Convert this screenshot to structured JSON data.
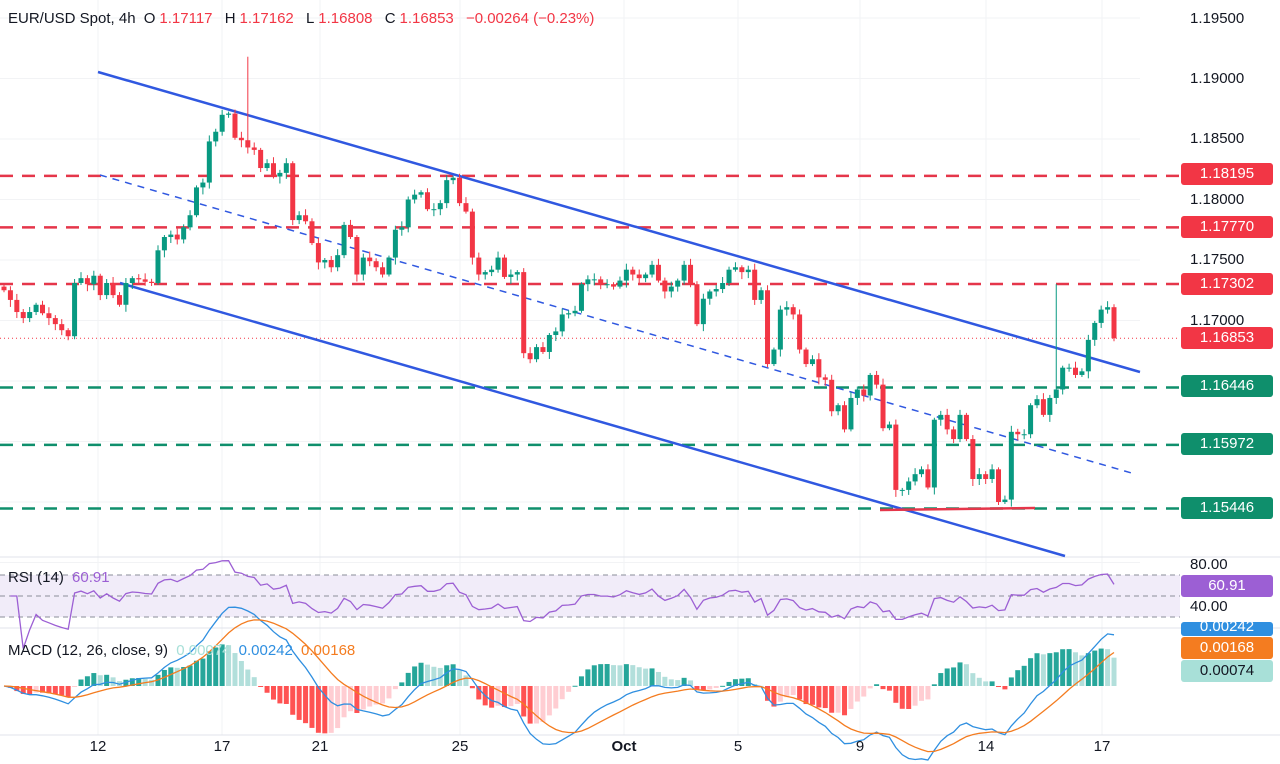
{
  "header": {
    "symbol": "EUR/USD Spot, 4h",
    "open_label": "O",
    "open": "1.17117",
    "high_label": "H",
    "high": "1.17162",
    "low_label": "L",
    "low": "1.16808",
    "close_label": "C",
    "close": "1.16853",
    "change": "−0.00264 (−0.23%)"
  },
  "colors": {
    "up": "#089981",
    "down": "#f23645",
    "trendline": "#3058e0",
    "resistance": "#e5364a",
    "support": "#0f8f6c",
    "rsi": "#9c5fd4",
    "macd": "#2f8fe0",
    "signal": "#f47c20"
  },
  "price_axis": {
    "labels": [
      "1.19500",
      "1.19000",
      "1.18500",
      "1.18000",
      "1.17500",
      "1.17000"
    ]
  },
  "levels": {
    "resistance": [
      {
        "label": "1.18195",
        "value": 1.18195
      },
      {
        "label": "1.17770",
        "value": 1.1777
      },
      {
        "label": "1.17302",
        "value": 1.17302
      }
    ],
    "support": [
      {
        "label": "1.16446",
        "value": 1.16446
      },
      {
        "label": "1.15972",
        "value": 1.15972
      },
      {
        "label": "1.15446",
        "value": 1.15446
      }
    ],
    "current": {
      "label": "1.16853",
      "value": 1.16853
    }
  },
  "time_axis": {
    "labels": [
      "12",
      "17",
      "21",
      "25",
      "Oct",
      "5",
      "9",
      "14",
      "17"
    ]
  },
  "rsi": {
    "title": "RSI (14)",
    "value": "60.91",
    "upper_label": "80.00",
    "lower_label": "40.00"
  },
  "macd": {
    "title": "MACD (12, 26, close, 9)",
    "histogram": "0.00074",
    "macd": "0.00242",
    "signal": "0.00168"
  },
  "chart_data": {
    "type": "candlestick",
    "title": "EUR/USD Spot, 4h",
    "ylim": [
      1.15,
      1.195
    ],
    "close": [
      1.1725,
      1.1717,
      1.1707,
      1.1702,
      1.1707,
      1.1713,
      1.1706,
      1.1702,
      1.1697,
      1.1692,
      1.1687,
      1.1731,
      1.1735,
      1.173,
      1.1737,
      1.1721,
      1.1731,
      1.1721,
      1.1713,
      1.1731,
      1.1735,
      1.1734,
      1.1732,
      1.1731,
      1.1758,
      1.1769,
      1.1771,
      1.1767,
      1.1777,
      1.1787,
      1.181,
      1.1814,
      1.1848,
      1.1856,
      1.187,
      1.1871,
      1.1851,
      1.1849,
      1.1843,
      1.1841,
      1.1826,
      1.183,
      1.1819,
      1.1822,
      1.183,
      1.1783,
      1.1787,
      1.1782,
      1.1764,
      1.1748,
      1.175,
      1.1744,
      1.1754,
      1.1779,
      1.1769,
      1.1738,
      1.1752,
      1.1749,
      1.1744,
      1.1738,
      1.1752,
      1.1775,
      1.1777,
      1.18,
      1.1804,
      1.1806,
      1.1792,
      1.1792,
      1.1797,
      1.1816,
      1.1818,
      1.1797,
      1.179,
      1.1752,
      1.1738,
      1.174,
      1.1742,
      1.1752,
      1.1736,
      1.1738,
      1.174,
      1.1673,
      1.1668,
      1.1678,
      1.1674,
      1.1688,
      1.1691,
      1.1705,
      1.1706,
      1.1708,
      1.173,
      1.1734,
      1.1734,
      1.173,
      1.173,
      1.1728,
      1.1733,
      1.1742,
      1.1738,
      1.1735,
      1.1738,
      1.1746,
      1.1733,
      1.1724,
      1.1728,
      1.1733,
      1.1746,
      1.173,
      1.1697,
      1.1718,
      1.1724,
      1.1726,
      1.1731,
      1.1742,
      1.1744,
      1.174,
      1.1742,
      1.1717,
      1.1725,
      1.1664,
      1.1676,
      1.1709,
      1.1711,
      1.1705,
      1.1676,
      1.1664,
      1.1668,
      1.1653,
      1.1651,
      1.1625,
      1.163,
      1.161,
      1.1636,
      1.1643,
      1.1638,
      1.1655,
      1.1647,
      1.1611,
      1.1614,
      1.156,
      1.156,
      1.1567,
      1.1573,
      1.1577,
      1.1562,
      1.1618,
      1.1622,
      1.161,
      1.1602,
      1.1622,
      1.1602,
      1.1569,
      1.1573,
      1.1569,
      1.1577,
      1.155,
      1.1552,
      1.1608,
      1.1606,
      1.1606,
      1.163,
      1.1635,
      1.1622,
      1.1636,
      1.1643,
      1.1661,
      1.1661,
      1.1655,
      1.1658,
      1.1684,
      1.1698,
      1.1709,
      1.1711,
      1.16853
    ],
    "notable_highs": {
      "38": 1.1918,
      "164": 1.173
    }
  }
}
